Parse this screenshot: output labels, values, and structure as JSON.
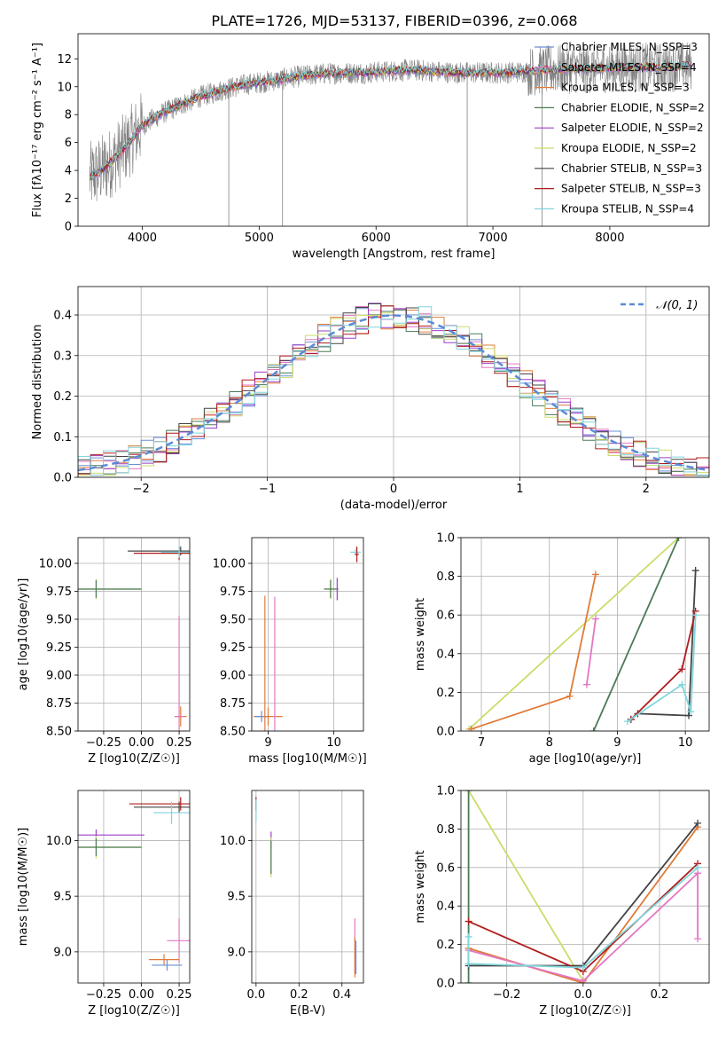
{
  "figure": {
    "title": "PLATE=1726, MJD=53137, FIBERID=0396, z=0.068"
  },
  "chart_data": [
    {
      "id": "spectrum",
      "type": "line",
      "xlabel": "wavelength [Angstrom, rest frame]",
      "ylabel": "Flux [fλ10⁻¹⁷ erg cm⁻² s⁻¹ A⁻¹]",
      "xlim": [
        3450,
        8850
      ],
      "ylim": [
        0,
        13.8
      ],
      "xticks": [
        4000,
        5000,
        6000,
        7000,
        8000
      ],
      "yticks": [
        0,
        2,
        4,
        6,
        8,
        10,
        12
      ],
      "grid": false,
      "legend_position": "right",
      "series": [
        {
          "name": "Chabrier MILES, N_SSP=3",
          "color": "#6b8fd6"
        },
        {
          "name": "Salpeter MILES, N_SSP=4",
          "color": "#e377c2"
        },
        {
          "name": "Kroupa MILES, N_SSP=3",
          "color": "#e07b39"
        },
        {
          "name": "Chabrier ELODIE, N_SSP=2",
          "color": "#4a7a56"
        },
        {
          "name": "Salpeter ELODIE, N_SSP=2",
          "color": "#9b3fc9"
        },
        {
          "name": "Kroupa ELODIE, N_SSP=2",
          "color": "#cbdc6a"
        },
        {
          "name": "Chabrier STELIB, N_SSP=3",
          "color": "#444444"
        },
        {
          "name": "Salpeter STELIB, N_SSP=3",
          "color": "#b01c1c"
        },
        {
          "name": "Kroupa STELIB, N_SSP=4",
          "color": "#7fd6dc"
        }
      ],
      "data_series": {
        "name": "data",
        "color": "#808080"
      },
      "continuum": {
        "x": [
          3550,
          3700,
          3850,
          4000,
          4150,
          4300,
          4500,
          4700,
          4900,
          5100,
          5300,
          5500,
          5700,
          5900,
          6100,
          6300,
          6500,
          6700,
          6900,
          7100,
          7300,
          7500,
          7700,
          7900,
          8100,
          8300,
          8500,
          8700
        ],
        "y": [
          3.5,
          4.3,
          5.6,
          7.2,
          8.0,
          8.6,
          9.3,
          9.8,
          10.2,
          10.4,
          10.7,
          10.9,
          11.0,
          11.0,
          11.1,
          11.2,
          11.1,
          11.0,
          11.0,
          11.0,
          11.1,
          11.2,
          11.3,
          11.3,
          11.4,
          11.4,
          11.4,
          11.5
        ]
      }
    },
    {
      "id": "residuals",
      "type": "line",
      "xlabel": "(data-model)/error",
      "ylabel": "Normed distribution",
      "xlim": [
        -2.5,
        2.5
      ],
      "ylim": [
        0,
        0.47
      ],
      "xticks": [
        -2,
        -1,
        0,
        1,
        2
      ],
      "yticks": [
        0.0,
        0.1,
        0.2,
        0.3,
        0.4
      ],
      "grid": true,
      "legend_position": "top-right",
      "gaussian_label": "𝒩(0, 1)",
      "gaussian_color": "#5b8bd6"
    },
    {
      "id": "age-vs-Z",
      "type": "scatter",
      "xlabel": "Z [log10(Z/Z☉)]",
      "ylabel": "age [log10(age/yr)]",
      "xlim": [
        -0.42,
        0.32
      ],
      "ylim": [
        8.5,
        10.23
      ],
      "xticks": [
        -0.25,
        0.0,
        0.25
      ],
      "yticks": [
        8.5,
        8.75,
        9.0,
        9.25,
        9.5,
        9.75,
        10.0
      ],
      "grid": true,
      "points": [
        {
          "x": 0.26,
          "y": 8.63,
          "color": "#e07b39",
          "xerr": 0.04,
          "yerr": 0.09
        },
        {
          "x": 0.25,
          "y": 8.63,
          "color": "#e377c2",
          "xerr": 0.03,
          "yerr": 0.9
        },
        {
          "x": 0.26,
          "y": 10.11,
          "color": "#444444",
          "xerr": 0.35,
          "yerr": 0.04
        },
        {
          "x": 0.25,
          "y": 10.09,
          "color": "#b01c1c",
          "xerr": 0.3,
          "yerr": 0.06
        },
        {
          "x": 0.25,
          "y": 10.1,
          "color": "#7fd6dc",
          "xerr": 0.12,
          "yerr": 0.05
        },
        {
          "x": -0.3,
          "y": 9.77,
          "color": "#cbdc6a",
          "xerr": 0.3,
          "yerr": 0.09
        },
        {
          "x": -0.3,
          "y": 9.77,
          "color": "#4a7a56",
          "xerr": 0.3,
          "yerr": 0.08
        }
      ]
    },
    {
      "id": "age-vs-mass",
      "type": "scatter",
      "xlabel": "mass [log10(M/M☉)]",
      "ylabel": "",
      "xlim": [
        8.75,
        10.45
      ],
      "ylim": [
        8.5,
        10.23
      ],
      "xticks": [
        9,
        10
      ],
      "yticks": [
        8.5,
        8.75,
        9.0,
        9.25,
        9.5,
        9.75,
        10.0
      ],
      "grid": true,
      "points": [
        {
          "x": 9.0,
          "y": 8.63,
          "color": "#e07b39",
          "xerr": 0.22,
          "yerr": 0.08
        },
        {
          "x": 8.9,
          "y": 8.63,
          "color": "#6b8fd6",
          "xerr": 0.1,
          "yerr": 0.05
        },
        {
          "x": 8.95,
          "y": 8.63,
          "color": "#e07b39",
          "xerr": 0.03,
          "yerr": 1.08
        },
        {
          "x": 9.1,
          "y": 8.63,
          "color": "#e377c2",
          "xerr": 0.02,
          "yerr": 1.07
        },
        {
          "x": 10.33,
          "y": 10.1,
          "color": "#7fd6dc",
          "xerr": 0.08,
          "yerr": 0.03
        },
        {
          "x": 10.35,
          "y": 10.08,
          "color": "#b01c1c",
          "xerr": 0.03,
          "yerr": 0.07
        },
        {
          "x": 10.05,
          "y": 9.77,
          "color": "#9b3fc9",
          "xerr": 0.02,
          "yerr": 0.1
        },
        {
          "x": 9.95,
          "y": 9.77,
          "color": "#cbdc6a",
          "xerr": 0.1,
          "yerr": 0.09
        },
        {
          "x": 9.95,
          "y": 9.77,
          "color": "#4a7a56",
          "xerr": 0.1,
          "yerr": 0.08
        }
      ]
    },
    {
      "id": "massweight-vs-age",
      "type": "line",
      "xlabel": "age [log10(age/yr)]",
      "ylabel": "mass weight",
      "xlim": [
        6.7,
        10.35
      ],
      "ylim": [
        0,
        1.0
      ],
      "xticks": [
        7,
        8,
        9,
        10
      ],
      "yticks": [
        0.0,
        0.2,
        0.4,
        0.6,
        0.8,
        1.0
      ],
      "grid": true,
      "series": [
        {
          "color": "#cbdc6a",
          "x": [
            6.82,
            9.9
          ],
          "y": [
            0.01,
            1.0
          ]
        },
        {
          "color": "#4a7a56",
          "x": [
            8.65,
            9.9
          ],
          "y": [
            0.0,
            1.0
          ]
        },
        {
          "color": "#e07b39",
          "x": [
            6.85,
            8.3,
            8.68
          ],
          "y": [
            0.01,
            0.18,
            0.81
          ]
        },
        {
          "color": "#e377c2",
          "x": [
            8.55,
            8.68
          ],
          "y": [
            0.24,
            0.58
          ]
        },
        {
          "color": "#444444",
          "x": [
            9.2,
            9.3,
            10.05,
            10.15
          ],
          "y": [
            0.06,
            0.09,
            0.08,
            0.83
          ]
        },
        {
          "color": "#b01c1c",
          "x": [
            9.2,
            9.95,
            10.15
          ],
          "y": [
            0.06,
            0.32,
            0.62
          ]
        },
        {
          "color": "#7fd6dc",
          "x": [
            9.15,
            9.95,
            10.08,
            10.15
          ],
          "y": [
            0.05,
            0.24,
            0.1,
            0.6
          ]
        }
      ]
    },
    {
      "id": "mass-vs-Z",
      "type": "scatter",
      "xlabel": "Z [log10(Z/Z☉)]",
      "ylabel": "mass [log10(M/M☉)]",
      "xlim": [
        -0.42,
        0.32
      ],
      "ylim": [
        8.72,
        10.45
      ],
      "xticks": [
        -0.25,
        0.0,
        0.25
      ],
      "yticks": [
        9.0,
        9.5,
        10.0
      ],
      "grid": true,
      "points": [
        {
          "x": 0.26,
          "y": 10.33,
          "color": "#b01c1c",
          "xerr": 0.34,
          "yerr": 0.06
        },
        {
          "x": 0.25,
          "y": 10.3,
          "color": "#444444",
          "xerr": 0.3,
          "yerr": 0.05
        },
        {
          "x": 0.2,
          "y": 10.25,
          "color": "#7fd6dc",
          "xerr": 0.12,
          "yerr": 0.1
        },
        {
          "x": -0.3,
          "y": 10.05,
          "color": "#9b3fc9",
          "xerr": 0.32,
          "yerr": 0.05
        },
        {
          "x": -0.3,
          "y": 9.94,
          "color": "#cbdc6a",
          "xerr": 0.3,
          "yerr": 0.1
        },
        {
          "x": -0.3,
          "y": 9.94,
          "color": "#4a7a56",
          "xerr": 0.3,
          "yerr": 0.08
        },
        {
          "x": 0.25,
          "y": 9.1,
          "color": "#e377c2",
          "xerr": 0.08,
          "yerr": 0.2
        },
        {
          "x": 0.15,
          "y": 8.93,
          "color": "#e07b39",
          "xerr": 0.1,
          "yerr": 0.05
        },
        {
          "x": 0.17,
          "y": 8.88,
          "color": "#6b8fd6",
          "xerr": 0.1,
          "yerr": 0.05
        }
      ]
    },
    {
      "id": "mass-vs-EBV",
      "type": "scatter",
      "xlabel": "E(B-V)",
      "ylabel": "",
      "xlim": [
        -0.02,
        0.5
      ],
      "ylim": [
        8.72,
        10.45
      ],
      "xticks": [
        0.0,
        0.2,
        0.4
      ],
      "yticks": [
        9.0,
        9.5,
        10.0
      ],
      "grid": true,
      "points": [
        {
          "x": 0.0,
          "y": 10.33,
          "color": "#b01c1c",
          "xerr": 0,
          "yerr": 0.06
        },
        {
          "x": 0.0,
          "y": 10.27,
          "color": "#7fd6dc",
          "xerr": 0,
          "yerr": 0.1
        },
        {
          "x": 0.07,
          "y": 10.0,
          "color": "#9b3fc9",
          "xerr": 0,
          "yerr": 0.08
        },
        {
          "x": 0.07,
          "y": 9.85,
          "color": "#cbdc6a",
          "xerr": 0,
          "yerr": 0.18
        },
        {
          "x": 0.07,
          "y": 9.85,
          "color": "#4a7a56",
          "xerr": 0,
          "yerr": 0.15
        },
        {
          "x": 0.46,
          "y": 9.05,
          "color": "#e377c2",
          "xerr": 0,
          "yerr": 0.25
        },
        {
          "x": 0.46,
          "y": 8.95,
          "color": "#e07b39",
          "xerr": 0,
          "yerr": 0.18
        },
        {
          "x": 0.465,
          "y": 8.95,
          "color": "#6b8fd6",
          "xerr": 0,
          "yerr": 0.15
        }
      ]
    },
    {
      "id": "massweight-vs-Z",
      "type": "line",
      "xlabel": "Z [log10(Z/Z☉)]",
      "ylabel": "mass weight",
      "xlim": [
        -0.32,
        0.33
      ],
      "ylim": [
        0,
        1.0
      ],
      "xticks": [
        -0.2,
        0.0,
        0.2
      ],
      "yticks": [
        0.0,
        0.2,
        0.4,
        0.6,
        0.8,
        1.0
      ],
      "grid": true,
      "series": [
        {
          "color": "#cbdc6a",
          "x": [
            -0.3,
            0.0
          ],
          "y": [
            1.0,
            0.01
          ]
        },
        {
          "color": "#4a7a56",
          "x": [
            -0.3,
            -0.3
          ],
          "y": [
            1.0,
            0.0
          ]
        },
        {
          "color": "#e07b39",
          "x": [
            -0.3,
            0.0,
            0.3
          ],
          "y": [
            0.18,
            0.0,
            0.81
          ]
        },
        {
          "color": "#e377c2",
          "x": [
            -0.3,
            0.0,
            0.3,
            0.3
          ],
          "y": [
            0.17,
            0.01,
            0.57,
            0.23
          ]
        },
        {
          "color": "#444444",
          "x": [
            -0.3,
            0.0,
            0.3
          ],
          "y": [
            0.09,
            0.09,
            0.83
          ]
        },
        {
          "color": "#b01c1c",
          "x": [
            -0.3,
            0.0,
            0.3
          ],
          "y": [
            0.32,
            0.06,
            0.62
          ]
        },
        {
          "color": "#7fd6dc",
          "x": [
            -0.3,
            -0.3,
            0.0,
            0.3
          ],
          "y": [
            0.24,
            0.1,
            0.08,
            0.6
          ]
        }
      ]
    }
  ]
}
